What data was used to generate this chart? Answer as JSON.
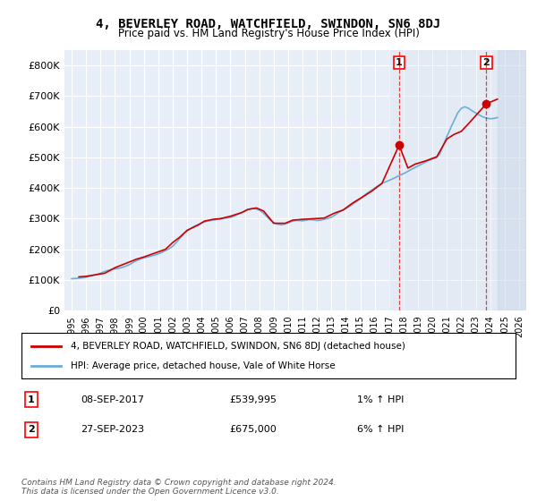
{
  "title": "4, BEVERLEY ROAD, WATCHFIELD, SWINDON, SN6 8DJ",
  "subtitle": "Price paid vs. HM Land Registry's House Price Index (HPI)",
  "hpi_color": "#6baed6",
  "price_color": "#cc0000",
  "marker1_year": 2017.69,
  "marker2_year": 2023.74,
  "marker1_price": 539995,
  "marker2_price": 675000,
  "ylim": [
    0,
    850000
  ],
  "xlim": [
    1994.5,
    2026.5
  ],
  "yticks": [
    0,
    100000,
    200000,
    300000,
    400000,
    500000,
    600000,
    700000,
    800000
  ],
  "ytick_labels": [
    "£0",
    "£100K",
    "£200K",
    "£300K",
    "£400K",
    "£500K",
    "£600K",
    "£700K",
    "£800K"
  ],
  "xticks": [
    1995,
    1996,
    1997,
    1998,
    1999,
    2000,
    2001,
    2002,
    2003,
    2004,
    2005,
    2006,
    2007,
    2008,
    2009,
    2010,
    2011,
    2012,
    2013,
    2014,
    2015,
    2016,
    2017,
    2018,
    2019,
    2020,
    2021,
    2022,
    2023,
    2024,
    2025,
    2026
  ],
  "legend_label_red": "4, BEVERLEY ROAD, WATCHFIELD, SWINDON, SN6 8DJ (detached house)",
  "legend_label_blue": "HPI: Average price, detached house, Vale of White Horse",
  "annotation1_label": "1",
  "annotation1_date": "08-SEP-2017",
  "annotation1_price": "£539,995",
  "annotation1_hpi": "1% ↑ HPI",
  "annotation2_label": "2",
  "annotation2_date": "27-SEP-2023",
  "annotation2_price": "£675,000",
  "annotation2_hpi": "6% ↑ HPI",
  "footnote": "Contains HM Land Registry data © Crown copyright and database right 2024.\nThis data is licensed under the Open Government Licence v3.0.",
  "background_color": "#ffffff",
  "plot_bg_color": "#e8eef7",
  "grid_color": "#ffffff",
  "hpi_data_x": [
    1995.0,
    1995.25,
    1995.5,
    1995.75,
    1996.0,
    1996.25,
    1996.5,
    1996.75,
    1997.0,
    1997.25,
    1997.5,
    1997.75,
    1998.0,
    1998.25,
    1998.5,
    1998.75,
    1999.0,
    1999.25,
    1999.5,
    1999.75,
    2000.0,
    2000.25,
    2000.5,
    2000.75,
    2001.0,
    2001.25,
    2001.5,
    2001.75,
    2002.0,
    2002.25,
    2002.5,
    2002.75,
    2003.0,
    2003.25,
    2003.5,
    2003.75,
    2004.0,
    2004.25,
    2004.5,
    2004.75,
    2005.0,
    2005.25,
    2005.5,
    2005.75,
    2006.0,
    2006.25,
    2006.5,
    2006.75,
    2007.0,
    2007.25,
    2007.5,
    2007.75,
    2008.0,
    2008.25,
    2008.5,
    2008.75,
    2009.0,
    2009.25,
    2009.5,
    2009.75,
    2010.0,
    2010.25,
    2010.5,
    2010.75,
    2011.0,
    2011.25,
    2011.5,
    2011.75,
    2012.0,
    2012.25,
    2012.5,
    2012.75,
    2013.0,
    2013.25,
    2013.5,
    2013.75,
    2014.0,
    2014.25,
    2014.5,
    2014.75,
    2015.0,
    2015.25,
    2015.5,
    2015.75,
    2016.0,
    2016.25,
    2016.5,
    2016.75,
    2017.0,
    2017.25,
    2017.5,
    2017.75,
    2018.0,
    2018.25,
    2018.5,
    2018.75,
    2019.0,
    2019.25,
    2019.5,
    2019.75,
    2020.0,
    2020.25,
    2020.5,
    2020.75,
    2021.0,
    2021.25,
    2021.5,
    2021.75,
    2022.0,
    2022.25,
    2022.5,
    2022.75,
    2023.0,
    2023.25,
    2023.5,
    2023.75,
    2024.0,
    2024.25,
    2024.5
  ],
  "hpi_data_y": [
    104000,
    105000,
    106000,
    107000,
    109000,
    112000,
    115000,
    118000,
    122000,
    127000,
    131000,
    134000,
    136000,
    138000,
    141000,
    145000,
    150000,
    157000,
    163000,
    168000,
    172000,
    175000,
    178000,
    181000,
    185000,
    190000,
    196000,
    202000,
    210000,
    222000,
    236000,
    250000,
    260000,
    268000,
    275000,
    281000,
    286000,
    290000,
    293000,
    295000,
    297000,
    299000,
    301000,
    302000,
    304000,
    308000,
    314000,
    320000,
    325000,
    330000,
    333000,
    332000,
    328000,
    320000,
    308000,
    296000,
    287000,
    282000,
    280000,
    282000,
    286000,
    291000,
    294000,
    294000,
    293000,
    295000,
    297000,
    296000,
    294000,
    295000,
    298000,
    301000,
    305000,
    312000,
    320000,
    327000,
    333000,
    340000,
    348000,
    356000,
    365000,
    375000,
    384000,
    392000,
    400000,
    408000,
    415000,
    420000,
    425000,
    430000,
    436000,
    442000,
    447000,
    453000,
    460000,
    466000,
    472000,
    478000,
    484000,
    490000,
    495000,
    498000,
    510000,
    540000,
    568000,
    595000,
    620000,
    645000,
    660000,
    665000,
    660000,
    652000,
    645000,
    638000,
    632000,
    628000,
    626000,
    627000,
    630000
  ],
  "price_data_x": [
    1995.5,
    1996.0,
    1997.3,
    1998.0,
    1999.5,
    2000.0,
    2001.5,
    2002.0,
    2002.5,
    2003.0,
    2003.8,
    2004.2,
    2004.8,
    2005.3,
    2006.0,
    2006.8,
    2007.2,
    2007.8,
    2008.3,
    2009.0,
    2009.8,
    2010.3,
    2011.0,
    2011.8,
    2012.5,
    2013.2,
    2013.8,
    2014.5,
    2015.2,
    2015.8,
    2016.5,
    2017.69,
    2018.3,
    2018.8,
    2019.5,
    2020.3,
    2021.0,
    2021.5,
    2022.0,
    2022.5,
    2023.74,
    2024.5
  ],
  "price_data_y": [
    110000,
    112000,
    122000,
    140000,
    168000,
    175000,
    200000,
    222000,
    240000,
    262000,
    280000,
    292000,
    298000,
    300000,
    308000,
    320000,
    330000,
    335000,
    325000,
    285000,
    285000,
    295000,
    298000,
    300000,
    302000,
    318000,
    328000,
    352000,
    372000,
    390000,
    415000,
    539995,
    465000,
    478000,
    488000,
    502000,
    560000,
    575000,
    585000,
    610000,
    675000,
    690000
  ]
}
